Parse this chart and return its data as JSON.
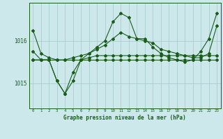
{
  "background_color": "#cce8eb",
  "grid_color": "#aacdd1",
  "line_color": "#1a5c1a",
  "xlabel": "Graphe pression niveau de la mer (hPa)",
  "xlim": [
    -0.5,
    23.5
  ],
  "ylim": [
    1014.4,
    1016.9
  ],
  "yticks": [
    1015.0,
    1016.0
  ],
  "xticks": [
    0,
    1,
    2,
    3,
    4,
    5,
    6,
    7,
    8,
    9,
    10,
    11,
    12,
    13,
    14,
    15,
    16,
    17,
    18,
    19,
    20,
    21,
    22,
    23
  ],
  "series": [
    [
      1015.55,
      1015.55,
      1015.55,
      1015.55,
      1015.55,
      1015.55,
      1015.55,
      1015.55,
      1015.55,
      1015.55,
      1015.55,
      1015.55,
      1015.55,
      1015.55,
      1015.55,
      1015.55,
      1015.55,
      1015.55,
      1015.55,
      1015.55,
      1015.55,
      1015.55,
      1015.55,
      1015.55
    ],
    [
      1015.75,
      1015.55,
      1015.55,
      1015.05,
      1014.75,
      1015.05,
      1015.55,
      1015.6,
      1015.65,
      1015.65,
      1015.65,
      1015.65,
      1015.65,
      1015.65,
      1015.65,
      1015.65,
      1015.65,
      1015.65,
      1015.65,
      1015.65,
      1015.65,
      1015.65,
      1015.65,
      1015.65
    ],
    [
      1016.25,
      1015.7,
      1015.6,
      1015.55,
      1015.55,
      1015.6,
      1015.65,
      1015.7,
      1015.8,
      1015.9,
      1016.05,
      1016.2,
      1016.1,
      1016.05,
      1016.0,
      1015.95,
      1015.8,
      1015.75,
      1015.7,
      1015.65,
      1015.6,
      1015.6,
      1015.7,
      1016.35
    ],
    [
      1015.55,
      1015.55,
      1015.55,
      1015.05,
      1014.75,
      1015.25,
      1015.55,
      1015.7,
      1015.85,
      1016.0,
      1016.45,
      1016.65,
      1016.55,
      1016.05,
      1016.05,
      1015.85,
      1015.7,
      1015.6,
      1015.55,
      1015.5,
      1015.55,
      1015.75,
      1016.05,
      1016.65
    ]
  ]
}
